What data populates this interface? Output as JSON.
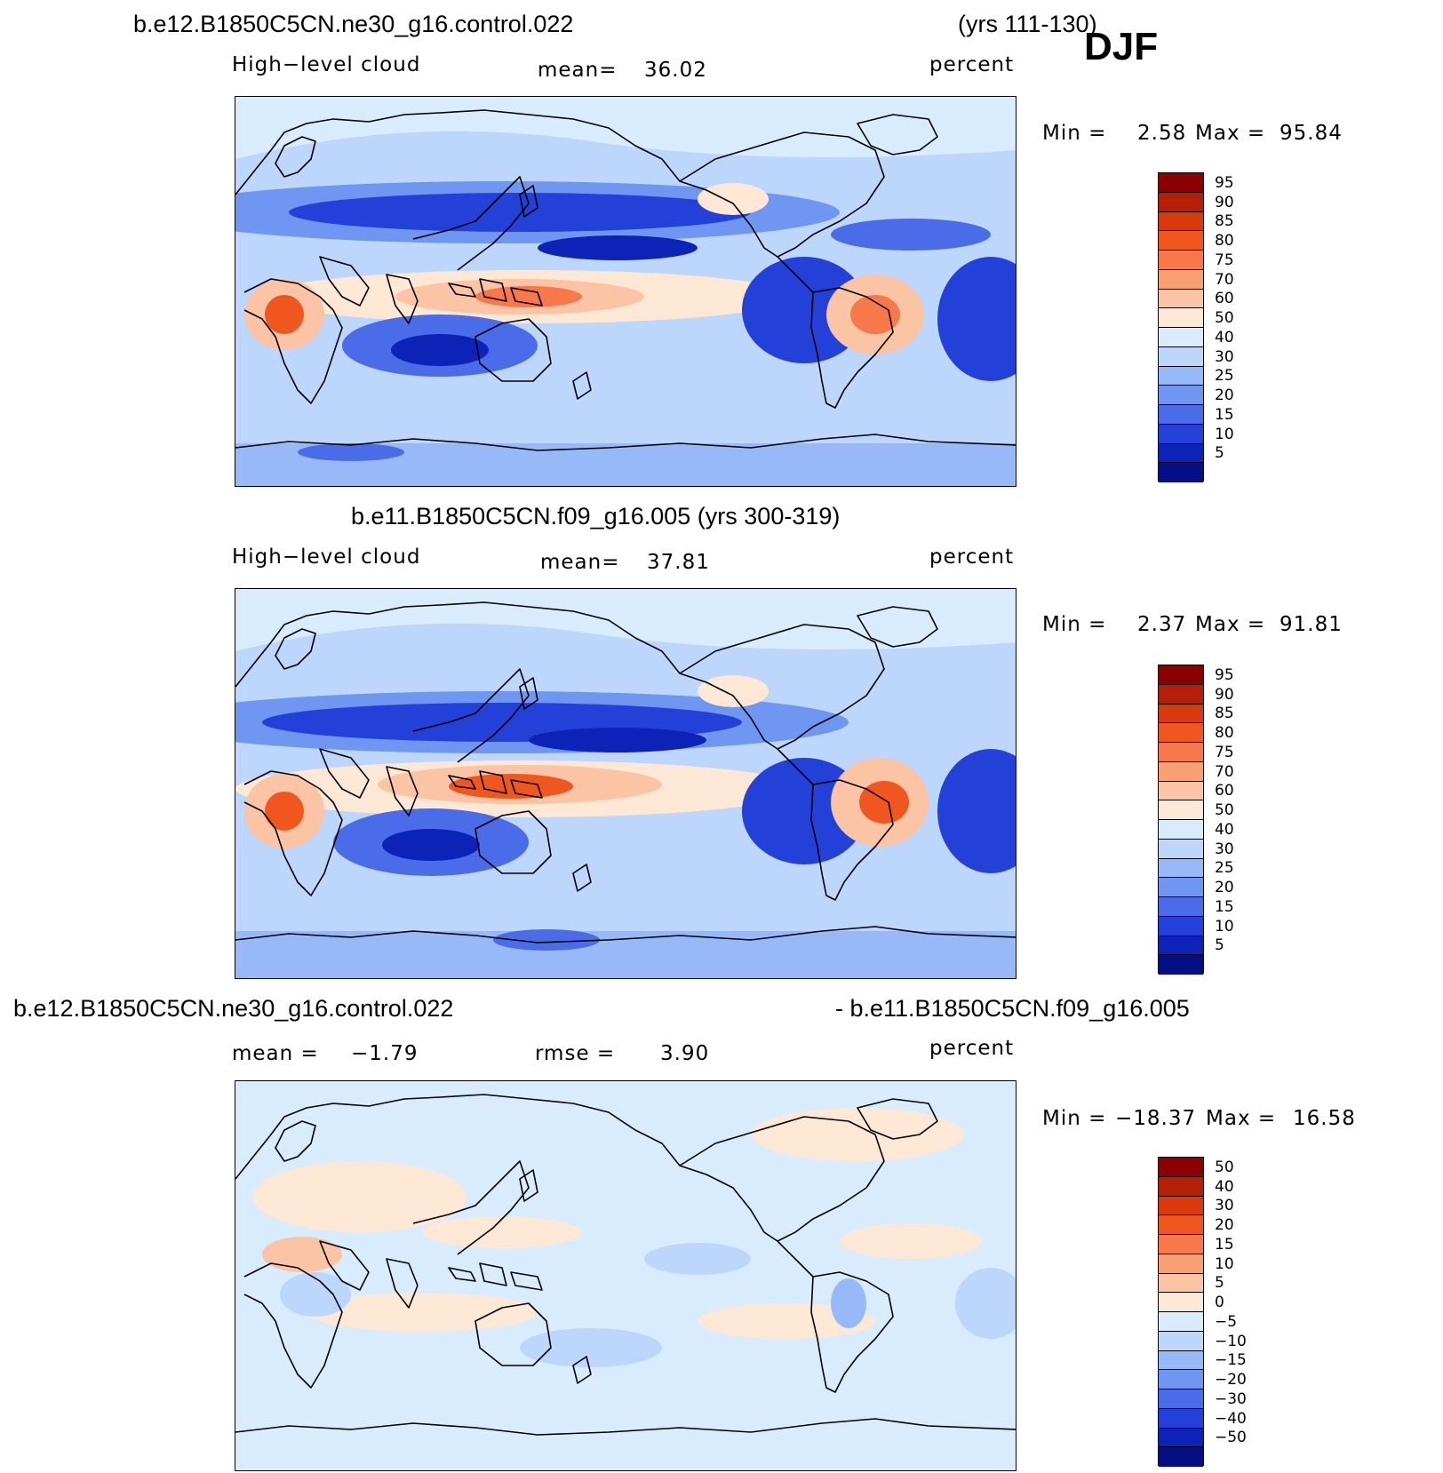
{
  "season": "DJF",
  "panel1": {
    "title_left": "b.e12.B1850C5CN.ne30_g16.control.022",
    "title_right": "(yrs 111-130)",
    "variable": "High−level cloud",
    "mean_label": "mean=",
    "mean_value": "36.02",
    "units": "percent",
    "min_label": "Min =",
    "min_value": "2.58",
    "max_label": "Max =",
    "max_value": "95.84"
  },
  "panel2": {
    "title": "b.e11.B1850C5CN.f09_g16.005 (yrs 300-319)",
    "variable": "High−level cloud",
    "mean_label": "mean=",
    "mean_value": "37.81",
    "units": "percent",
    "min_label": "Min =",
    "min_value": "2.37",
    "max_label": "Max =",
    "max_value": "91.81"
  },
  "panel3": {
    "title_left": "b.e12.B1850C5CN.ne30_g16.control.022",
    "title_right": "- b.e11.B1850C5CN.f09_g16.005",
    "mean_label": "mean =",
    "mean_value": "−1.79",
    "rmse_label": "rmse =",
    "rmse_value": "3.90",
    "units": "percent",
    "min_label": "Min =",
    "min_value": "−18.37",
    "max_label": "Max =",
    "max_value": "16.58"
  },
  "colorbar_abs": {
    "labels": [
      "95",
      "90",
      "85",
      "80",
      "75",
      "70",
      "60",
      "50",
      "40",
      "30",
      "25",
      "20",
      "15",
      "10",
      "5"
    ],
    "colors": [
      "#8b0000",
      "#b51f08",
      "#d93a0b",
      "#f0571f",
      "#f7784a",
      "#f9a072",
      "#fbc4a4",
      "#fde8d6",
      "#d9ecfd",
      "#bdd6fb",
      "#98b9f8",
      "#6f96f1",
      "#4a6ce8",
      "#2341d8",
      "#0d23b8",
      "#050f85"
    ]
  },
  "colorbar_diff": {
    "labels": [
      "50",
      "40",
      "30",
      "20",
      "15",
      "10",
      "5",
      "0",
      "−5",
      "−10",
      "−15",
      "−20",
      "−30",
      "−40",
      "−50"
    ],
    "colors": [
      "#8b0000",
      "#b51f08",
      "#d93a0b",
      "#f0571f",
      "#f7784a",
      "#f9a072",
      "#fbc4a4",
      "#fde8d6",
      "#d9ecfd",
      "#bdd6fb",
      "#98b9f8",
      "#6f96f1",
      "#4a6ce8",
      "#2341d8",
      "#0d23b8",
      "#050f85"
    ]
  }
}
